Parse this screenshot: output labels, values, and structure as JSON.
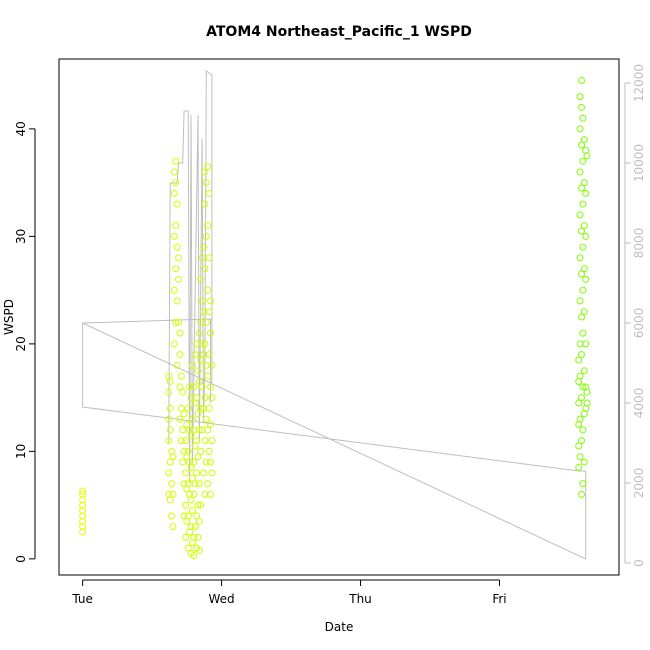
{
  "chart_data": {
    "type": "scatter",
    "title": "ATOM4 Northeast_Pacific_1 WSPD",
    "xlabel": "Date",
    "ylabel": "WSPD",
    "x_ticks": [
      "Tue",
      "Wed",
      "Thu",
      "Fri"
    ],
    "x_tick_values": [
      0,
      1,
      2,
      3
    ],
    "xlim": [
      -0.17,
      3.86
    ],
    "ylim": [
      -1.5,
      46.5
    ],
    "y_ticks": [
      0,
      10,
      20,
      30,
      40
    ],
    "y2_ticks": [
      0,
      2000,
      4000,
      6000,
      8000,
      10000,
      12000
    ],
    "y2lim": [
      -300,
      12600
    ],
    "grid": false,
    "legend": "none",
    "marker": "open circle",
    "series": [
      {
        "axis": "left",
        "color_gradient": [
          "#e6ff00",
          "#7fff00"
        ],
        "points": [
          [
            0.0,
            2.5
          ],
          [
            0.0,
            3.5
          ],
          [
            0.0,
            4.5
          ],
          [
            0.0,
            5.5
          ],
          [
            0.0,
            6.3
          ],
          [
            0.0,
            3.0
          ],
          [
            0.0,
            4.0
          ],
          [
            0.0,
            5.0
          ],
          [
            0.0,
            6.0
          ],
          [
            0.62,
            6.0
          ],
          [
            0.62,
            8.0
          ],
          [
            0.62,
            11.0
          ],
          [
            0.62,
            13.0
          ],
          [
            0.62,
            15.5
          ],
          [
            0.62,
            17.0
          ],
          [
            0.63,
            5.5
          ],
          [
            0.63,
            9.0
          ],
          [
            0.63,
            12.0
          ],
          [
            0.63,
            14.0
          ],
          [
            0.63,
            16.5
          ],
          [
            0.64,
            4.0
          ],
          [
            0.64,
            7.0
          ],
          [
            0.64,
            10.0
          ],
          [
            0.65,
            3.0
          ],
          [
            0.65,
            6.0
          ],
          [
            0.65,
            9.5
          ],
          [
            0.66,
            20.0
          ],
          [
            0.66,
            25.0
          ],
          [
            0.66,
            30.0
          ],
          [
            0.66,
            34.0
          ],
          [
            0.66,
            36.0
          ],
          [
            0.67,
            22.0
          ],
          [
            0.67,
            27.0
          ],
          [
            0.67,
            31.0
          ],
          [
            0.67,
            35.0
          ],
          [
            0.67,
            37.0
          ],
          [
            0.68,
            18.0
          ],
          [
            0.68,
            24.0
          ],
          [
            0.68,
            29.0
          ],
          [
            0.68,
            33.0
          ],
          [
            0.69,
            22.0
          ],
          [
            0.69,
            26.0
          ],
          [
            0.69,
            28.0
          ],
          [
            0.7,
            13.0
          ],
          [
            0.7,
            16.0
          ],
          [
            0.7,
            19.0
          ],
          [
            0.7,
            21.0
          ],
          [
            0.71,
            11.0
          ],
          [
            0.71,
            14.0
          ],
          [
            0.71,
            17.0
          ],
          [
            0.72,
            9.0
          ],
          [
            0.72,
            12.0
          ],
          [
            0.72,
            15.5
          ],
          [
            0.73,
            4.0
          ],
          [
            0.73,
            7.0
          ],
          [
            0.73,
            10.0
          ],
          [
            0.73,
            13.5
          ],
          [
            0.74,
            2.0
          ],
          [
            0.74,
            5.0
          ],
          [
            0.74,
            8.0
          ],
          [
            0.74,
            11.0
          ],
          [
            0.75,
            3.5
          ],
          [
            0.75,
            6.5
          ],
          [
            0.75,
            9.5
          ],
          [
            0.75,
            12.5
          ],
          [
            0.76,
            1.0
          ],
          [
            0.76,
            4.0
          ],
          [
            0.76,
            7.0
          ],
          [
            0.76,
            10.0
          ],
          [
            0.76,
            14.0
          ],
          [
            0.77,
            2.5
          ],
          [
            0.77,
            6.0
          ],
          [
            0.77,
            9.0
          ],
          [
            0.77,
            12.0
          ],
          [
            0.77,
            16.0
          ],
          [
            0.78,
            0.5
          ],
          [
            0.78,
            3.0
          ],
          [
            0.78,
            5.5
          ],
          [
            0.78,
            8.5
          ],
          [
            0.78,
            11.5
          ],
          [
            0.78,
            15.0
          ],
          [
            0.79,
            1.5
          ],
          [
            0.79,
            4.5
          ],
          [
            0.79,
            7.5
          ],
          [
            0.79,
            13.0
          ],
          [
            0.79,
            18.0
          ],
          [
            0.8,
            0.3
          ],
          [
            0.8,
            2.0
          ],
          [
            0.8,
            6.0
          ],
          [
            0.8,
            9.0
          ],
          [
            0.8,
            12.0
          ],
          [
            0.8,
            16.0
          ],
          [
            0.81,
            3.0
          ],
          [
            0.81,
            7.0
          ],
          [
            0.81,
            10.5
          ],
          [
            0.81,
            14.5
          ],
          [
            0.81,
            19.0
          ],
          [
            0.82,
            1.0
          ],
          [
            0.82,
            4.0
          ],
          [
            0.82,
            8.0
          ],
          [
            0.82,
            11.0
          ],
          [
            0.82,
            15.0
          ],
          [
            0.82,
            20.0
          ],
          [
            0.83,
            2.0
          ],
          [
            0.83,
            5.0
          ],
          [
            0.83,
            9.5
          ],
          [
            0.83,
            13.5
          ],
          [
            0.83,
            17.5
          ],
          [
            0.84,
            0.8
          ],
          [
            0.84,
            3.5
          ],
          [
            0.84,
            7.0
          ],
          [
            0.84,
            12.0
          ],
          [
            0.84,
            16.5
          ],
          [
            0.84,
            21.0
          ],
          [
            0.85,
            5.0
          ],
          [
            0.85,
            10.0
          ],
          [
            0.85,
            14.0
          ],
          [
            0.85,
            18.5
          ],
          [
            0.85,
            22.0
          ],
          [
            0.85,
            26.0
          ],
          [
            0.86,
            12.0
          ],
          [
            0.86,
            16.0
          ],
          [
            0.86,
            20.0
          ],
          [
            0.86,
            24.0
          ],
          [
            0.86,
            28.0
          ],
          [
            0.87,
            8.0
          ],
          [
            0.87,
            14.0
          ],
          [
            0.87,
            19.0
          ],
          [
            0.87,
            23.0
          ],
          [
            0.87,
            29.0
          ],
          [
            0.88,
            6.0
          ],
          [
            0.88,
            11.0
          ],
          [
            0.88,
            15.0
          ],
          [
            0.88,
            20.0
          ],
          [
            0.88,
            27.0
          ],
          [
            0.88,
            33.0
          ],
          [
            0.88,
            36.0
          ],
          [
            0.89,
            9.0
          ],
          [
            0.89,
            13.0
          ],
          [
            0.89,
            18.0
          ],
          [
            0.89,
            22.0
          ],
          [
            0.89,
            30.0
          ],
          [
            0.89,
            35.0
          ],
          [
            0.9,
            7.0
          ],
          [
            0.9,
            12.0
          ],
          [
            0.9,
            17.0
          ],
          [
            0.9,
            25.0
          ],
          [
            0.9,
            31.0
          ],
          [
            0.9,
            36.5
          ],
          [
            0.91,
            10.0
          ],
          [
            0.91,
            14.0
          ],
          [
            0.91,
            19.0
          ],
          [
            0.91,
            23.0
          ],
          [
            0.91,
            28.0
          ],
          [
            0.91,
            34.0
          ],
          [
            0.92,
            6.0
          ],
          [
            0.92,
            9.0
          ],
          [
            0.92,
            12.5
          ],
          [
            0.92,
            16.0
          ],
          [
            0.92,
            21.0
          ],
          [
            0.92,
            24.0
          ],
          [
            0.93,
            8.0
          ],
          [
            0.93,
            11.0
          ],
          [
            0.93,
            15.0
          ],
          [
            0.93,
            18.0
          ],
          [
            3.57,
            8.5
          ],
          [
            3.57,
            10.5
          ],
          [
            3.57,
            12.5
          ],
          [
            3.57,
            14.5
          ],
          [
            3.57,
            16.5
          ],
          [
            3.57,
            18.5
          ],
          [
            3.58,
            9.5
          ],
          [
            3.58,
            13.0
          ],
          [
            3.58,
            17.0
          ],
          [
            3.58,
            20.0
          ],
          [
            3.58,
            24.0
          ],
          [
            3.58,
            28.0
          ],
          [
            3.58,
            32.0
          ],
          [
            3.58,
            36.0
          ],
          [
            3.58,
            40.0
          ],
          [
            3.58,
            43.0
          ],
          [
            3.59,
            6.0
          ],
          [
            3.59,
            11.0
          ],
          [
            3.59,
            15.0
          ],
          [
            3.59,
            19.0
          ],
          [
            3.59,
            22.5
          ],
          [
            3.59,
            26.5
          ],
          [
            3.59,
            30.5
          ],
          [
            3.59,
            34.5
          ],
          [
            3.59,
            38.5
          ],
          [
            3.59,
            42.0
          ],
          [
            3.59,
            44.5
          ],
          [
            3.6,
            7.0
          ],
          [
            3.6,
            12.0
          ],
          [
            3.6,
            16.0
          ],
          [
            3.6,
            21.0
          ],
          [
            3.6,
            25.0
          ],
          [
            3.6,
            29.0
          ],
          [
            3.6,
            33.0
          ],
          [
            3.6,
            37.0
          ],
          [
            3.6,
            41.0
          ],
          [
            3.61,
            9.0
          ],
          [
            3.61,
            13.5
          ],
          [
            3.61,
            17.5
          ],
          [
            3.61,
            23.0
          ],
          [
            3.61,
            27.0
          ],
          [
            3.61,
            31.0
          ],
          [
            3.61,
            35.0
          ],
          [
            3.61,
            39.0
          ],
          [
            3.62,
            14.0
          ],
          [
            3.62,
            16.0
          ],
          [
            3.62,
            20.0
          ],
          [
            3.62,
            26.0
          ],
          [
            3.62,
            30.0
          ],
          [
            3.62,
            34.0
          ],
          [
            3.62,
            38.0
          ],
          [
            3.63,
            14.5
          ],
          [
            3.63,
            15.5
          ],
          [
            3.63,
            37.5
          ]
        ]
      },
      {
        "axis": "right",
        "color": "#bebebe",
        "style": "line",
        "points": [
          [
            0.0,
            6000
          ],
          [
            0.0,
            3900
          ],
          [
            3.57,
            2300
          ],
          [
            3.62,
            2300
          ],
          [
            3.62,
            100
          ],
          [
            0.0,
            6000
          ],
          [
            0.92,
            6100
          ],
          [
            0.92,
            4000
          ]
        ]
      },
      {
        "axis": "right",
        "color": "#bebebe",
        "style": "line",
        "points": [
          [
            0.62,
            3000
          ],
          [
            0.63,
            9500
          ],
          [
            0.68,
            9500
          ],
          [
            0.69,
            10000
          ],
          [
            0.72,
            10000
          ],
          [
            0.73,
            11300
          ],
          [
            0.76,
            11300
          ],
          [
            0.77,
            2000
          ],
          [
            0.78,
            11200
          ],
          [
            0.79,
            2500
          ],
          [
            0.83,
            11200
          ],
          [
            0.84,
            3000
          ],
          [
            0.86,
            10600
          ],
          [
            0.87,
            3500
          ],
          [
            0.88,
            5000
          ],
          [
            0.89,
            12300
          ],
          [
            0.93,
            12200
          ],
          [
            0.93,
            4500
          ]
        ]
      }
    ]
  }
}
